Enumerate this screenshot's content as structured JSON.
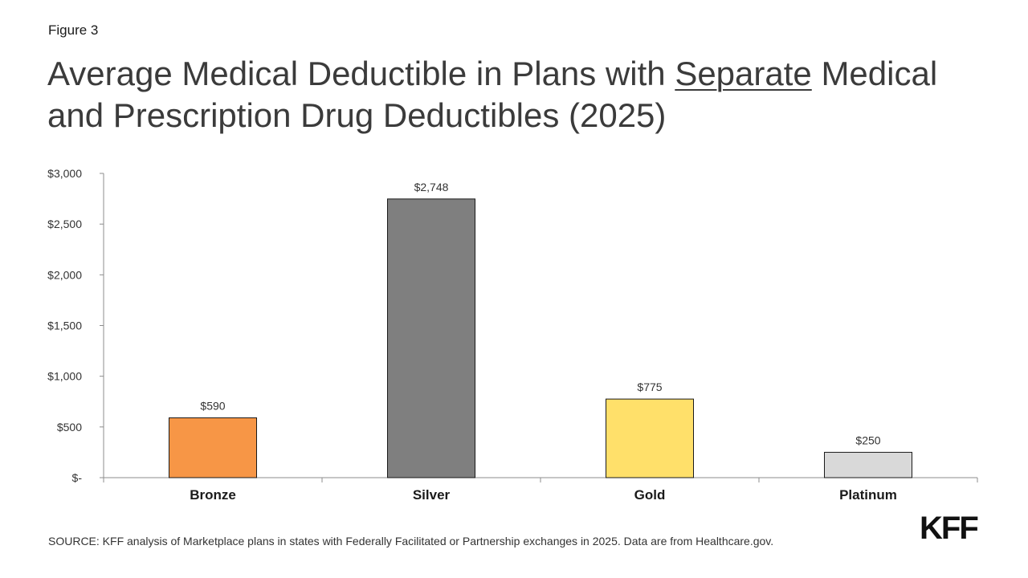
{
  "figure_label": "Figure 3",
  "title": {
    "part1": "Average Medical Deductible in Plans with ",
    "underlined": "Separate",
    "part2": " Medical and Prescription Drug Deductibles (2025)"
  },
  "source": "SOURCE: KFF analysis of Marketplace plans in states with Federally Facilitated or Partnership exchanges in 2025. Data are from Healthcare.gov.",
  "logo": "KFF",
  "chart_data": {
    "type": "bar",
    "categories": [
      "Bronze",
      "Silver",
      "Gold",
      "Platinum"
    ],
    "values": [
      590,
      2748,
      775,
      250
    ],
    "value_labels": [
      "$590",
      "$2,748",
      "$775",
      "$250"
    ],
    "colors": [
      "#F79646",
      "#7F7F7F",
      "#FFE06A",
      "#D9D9D9"
    ],
    "ylim": [
      0,
      3000
    ],
    "yticks": [
      0,
      500,
      1000,
      1500,
      2000,
      2500,
      3000
    ],
    "ytick_labels": [
      "$-",
      "$500",
      "$1,000",
      "$1,500",
      "$2,000",
      "$2,500",
      "$3,000"
    ],
    "xlabel": "",
    "ylabel": "",
    "grid": false,
    "legend": false
  }
}
